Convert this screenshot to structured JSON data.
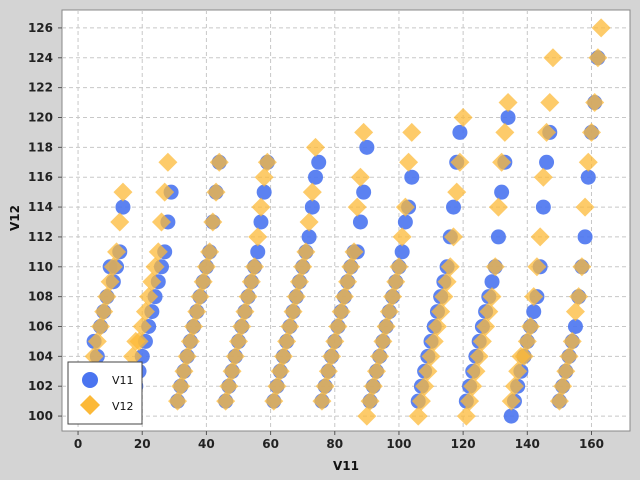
{
  "chart_data": {
    "type": "scatter",
    "title": "",
    "xlabel": "V11",
    "ylabel": "V12",
    "xlim": [
      -5,
      172
    ],
    "ylim": [
      99,
      127.2
    ],
    "xticks": [
      0,
      20,
      40,
      60,
      80,
      100,
      120,
      140,
      160
    ],
    "yticks": [
      100,
      102,
      104,
      106,
      108,
      110,
      112,
      114,
      116,
      118,
      120,
      122,
      124,
      126
    ],
    "grid": true,
    "legend": {
      "position": "bottom-left",
      "entries": [
        "V11",
        "V12"
      ]
    },
    "colors": {
      "V11": "#4a74f0",
      "V12": "#fcb938",
      "overlap": "#b9935b"
    },
    "series": [
      {
        "name": "V11",
        "marker": "circle",
        "points": [
          [
            5,
            105
          ],
          [
            6,
            104
          ],
          [
            7,
            106
          ],
          [
            8,
            107
          ],
          [
            9,
            108
          ],
          [
            10,
            110
          ],
          [
            11,
            109
          ],
          [
            12,
            110
          ],
          [
            13,
            111
          ],
          [
            14,
            114
          ],
          [
            17,
            101
          ],
          [
            18,
            102
          ],
          [
            19,
            103
          ],
          [
            20,
            104
          ],
          [
            21,
            105
          ],
          [
            22,
            106
          ],
          [
            23,
            107
          ],
          [
            24,
            108
          ],
          [
            25,
            109
          ],
          [
            26,
            110
          ],
          [
            27,
            111
          ],
          [
            28,
            113
          ],
          [
            29,
            115
          ],
          [
            31,
            101
          ],
          [
            32,
            102
          ],
          [
            33,
            103
          ],
          [
            34,
            104
          ],
          [
            35,
            105
          ],
          [
            36,
            106
          ],
          [
            37,
            107
          ],
          [
            38,
            108
          ],
          [
            39,
            109
          ],
          [
            40,
            110
          ],
          [
            41,
            111
          ],
          [
            42,
            113
          ],
          [
            43,
            115
          ],
          [
            44,
            117
          ],
          [
            46,
            101
          ],
          [
            47,
            102
          ],
          [
            48,
            103
          ],
          [
            49,
            104
          ],
          [
            50,
            105
          ],
          [
            51,
            106
          ],
          [
            52,
            107
          ],
          [
            53,
            108
          ],
          [
            54,
            109
          ],
          [
            55,
            110
          ],
          [
            56,
            111
          ],
          [
            57,
            113
          ],
          [
            58,
            115
          ],
          [
            59,
            117
          ],
          [
            61,
            101
          ],
          [
            62,
            102
          ],
          [
            63,
            103
          ],
          [
            64,
            104
          ],
          [
            65,
            105
          ],
          [
            66,
            106
          ],
          [
            67,
            107
          ],
          [
            68,
            108
          ],
          [
            69,
            109
          ],
          [
            70,
            110
          ],
          [
            71,
            111
          ],
          [
            72,
            112
          ],
          [
            73,
            114
          ],
          [
            74,
            116
          ],
          [
            75,
            117
          ],
          [
            76,
            101
          ],
          [
            77,
            102
          ],
          [
            78,
            103
          ],
          [
            79,
            104
          ],
          [
            80,
            105
          ],
          [
            81,
            106
          ],
          [
            82,
            107
          ],
          [
            83,
            108
          ],
          [
            84,
            109
          ],
          [
            85,
            110
          ],
          [
            86,
            111
          ],
          [
            87,
            111
          ],
          [
            88,
            113
          ],
          [
            89,
            115
          ],
          [
            90,
            118
          ],
          [
            91,
            101
          ],
          [
            92,
            102
          ],
          [
            93,
            103
          ],
          [
            94,
            104
          ],
          [
            95,
            105
          ],
          [
            96,
            106
          ],
          [
            97,
            107
          ],
          [
            98,
            108
          ],
          [
            99,
            109
          ],
          [
            100,
            110
          ],
          [
            101,
            111
          ],
          [
            102,
            113
          ],
          [
            103,
            114
          ],
          [
            104,
            116
          ],
          [
            106,
            101
          ],
          [
            107,
            102
          ],
          [
            108,
            103
          ],
          [
            109,
            104
          ],
          [
            110,
            105
          ],
          [
            111,
            106
          ],
          [
            112,
            107
          ],
          [
            113,
            108
          ],
          [
            114,
            109
          ],
          [
            115,
            110
          ],
          [
            116,
            112
          ],
          [
            117,
            114
          ],
          [
            118,
            117
          ],
          [
            119,
            119
          ],
          [
            121,
            101
          ],
          [
            122,
            102
          ],
          [
            123,
            103
          ],
          [
            124,
            104
          ],
          [
            125,
            105
          ],
          [
            126,
            106
          ],
          [
            127,
            107
          ],
          [
            128,
            108
          ],
          [
            129,
            109
          ],
          [
            130,
            110
          ],
          [
            131,
            112
          ],
          [
            132,
            115
          ],
          [
            133,
            117
          ],
          [
            134,
            120
          ],
          [
            135,
            100
          ],
          [
            136,
            101
          ],
          [
            137,
            102
          ],
          [
            138,
            103
          ],
          [
            139,
            104
          ],
          [
            140,
            105
          ],
          [
            141,
            106
          ],
          [
            142,
            107
          ],
          [
            143,
            108
          ],
          [
            144,
            110
          ],
          [
            145,
            114
          ],
          [
            146,
            117
          ],
          [
            147,
            119
          ],
          [
            150,
            101
          ],
          [
            151,
            102
          ],
          [
            152,
            103
          ],
          [
            153,
            104
          ],
          [
            154,
            105
          ],
          [
            155,
            106
          ],
          [
            156,
            108
          ],
          [
            157,
            110
          ],
          [
            158,
            112
          ],
          [
            159,
            116
          ],
          [
            160,
            119
          ],
          [
            161,
            121
          ],
          [
            162,
            124
          ]
        ]
      },
      {
        "name": "V12",
        "marker": "diamond",
        "points": [
          [
            5,
            104
          ],
          [
            6,
            105
          ],
          [
            7,
            106
          ],
          [
            8,
            107
          ],
          [
            9,
            108
          ],
          [
            10,
            109
          ],
          [
            11,
            110
          ],
          [
            12,
            111
          ],
          [
            13,
            113
          ],
          [
            14,
            115
          ],
          [
            17,
            104
          ],
          [
            18,
            105
          ],
          [
            19,
            105
          ],
          [
            20,
            106
          ],
          [
            21,
            107
          ],
          [
            22,
            108
          ],
          [
            23,
            109
          ],
          [
            24,
            110
          ],
          [
            25,
            111
          ],
          [
            26,
            113
          ],
          [
            27,
            115
          ],
          [
            28,
            117
          ],
          [
            31,
            101
          ],
          [
            32,
            102
          ],
          [
            33,
            103
          ],
          [
            34,
            104
          ],
          [
            35,
            105
          ],
          [
            36,
            106
          ],
          [
            37,
            107
          ],
          [
            38,
            108
          ],
          [
            39,
            109
          ],
          [
            40,
            110
          ],
          [
            41,
            111
          ],
          [
            42,
            113
          ],
          [
            43,
            115
          ],
          [
            44,
            117
          ],
          [
            46,
            101
          ],
          [
            47,
            102
          ],
          [
            48,
            103
          ],
          [
            49,
            104
          ],
          [
            50,
            105
          ],
          [
            51,
            106
          ],
          [
            52,
            107
          ],
          [
            53,
            108
          ],
          [
            54,
            109
          ],
          [
            55,
            110
          ],
          [
            56,
            112
          ],
          [
            57,
            114
          ],
          [
            58,
            116
          ],
          [
            59,
            117
          ],
          [
            61,
            101
          ],
          [
            62,
            102
          ],
          [
            63,
            103
          ],
          [
            64,
            104
          ],
          [
            65,
            105
          ],
          [
            66,
            106
          ],
          [
            67,
            107
          ],
          [
            68,
            108
          ],
          [
            69,
            109
          ],
          [
            70,
            110
          ],
          [
            71,
            111
          ],
          [
            72,
            113
          ],
          [
            73,
            115
          ],
          [
            74,
            118
          ],
          [
            76,
            101
          ],
          [
            77,
            102
          ],
          [
            78,
            103
          ],
          [
            79,
            104
          ],
          [
            80,
            105
          ],
          [
            81,
            106
          ],
          [
            82,
            107
          ],
          [
            83,
            108
          ],
          [
            84,
            109
          ],
          [
            85,
            110
          ],
          [
            86,
            111
          ],
          [
            87,
            114
          ],
          [
            88,
            116
          ],
          [
            89,
            119
          ],
          [
            90,
            100
          ],
          [
            91,
            101
          ],
          [
            92,
            102
          ],
          [
            93,
            103
          ],
          [
            94,
            104
          ],
          [
            95,
            105
          ],
          [
            96,
            106
          ],
          [
            97,
            107
          ],
          [
            98,
            108
          ],
          [
            99,
            109
          ],
          [
            100,
            110
          ],
          [
            101,
            112
          ],
          [
            102,
            114
          ],
          [
            103,
            117
          ],
          [
            104,
            119
          ],
          [
            106,
            100
          ],
          [
            107,
            101
          ],
          [
            108,
            102
          ],
          [
            109,
            103
          ],
          [
            110,
            104
          ],
          [
            111,
            105
          ],
          [
            112,
            106
          ],
          [
            113,
            107
          ],
          [
            114,
            108
          ],
          [
            115,
            109
          ],
          [
            116,
            110
          ],
          [
            117,
            112
          ],
          [
            118,
            115
          ],
          [
            119,
            117
          ],
          [
            120,
            120
          ],
          [
            121,
            100
          ],
          [
            122,
            101
          ],
          [
            123,
            102
          ],
          [
            124,
            103
          ],
          [
            125,
            104
          ],
          [
            126,
            105
          ],
          [
            127,
            106
          ],
          [
            128,
            107
          ],
          [
            129,
            108
          ],
          [
            130,
            110
          ],
          [
            131,
            114
          ],
          [
            132,
            117
          ],
          [
            133,
            119
          ],
          [
            134,
            121
          ],
          [
            135,
            101
          ],
          [
            136,
            102
          ],
          [
            137,
            103
          ],
          [
            138,
            104
          ],
          [
            139,
            104
          ],
          [
            140,
            105
          ],
          [
            141,
            106
          ],
          [
            142,
            108
          ],
          [
            143,
            110
          ],
          [
            144,
            112
          ],
          [
            145,
            116
          ],
          [
            146,
            119
          ],
          [
            147,
            121
          ],
          [
            148,
            124
          ],
          [
            150,
            101
          ],
          [
            151,
            102
          ],
          [
            152,
            103
          ],
          [
            153,
            104
          ],
          [
            154,
            105
          ],
          [
            155,
            107
          ],
          [
            156,
            108
          ],
          [
            157,
            110
          ],
          [
            158,
            114
          ],
          [
            159,
            117
          ],
          [
            160,
            119
          ],
          [
            161,
            121
          ],
          [
            162,
            124
          ],
          [
            163,
            126
          ]
        ]
      }
    ]
  }
}
